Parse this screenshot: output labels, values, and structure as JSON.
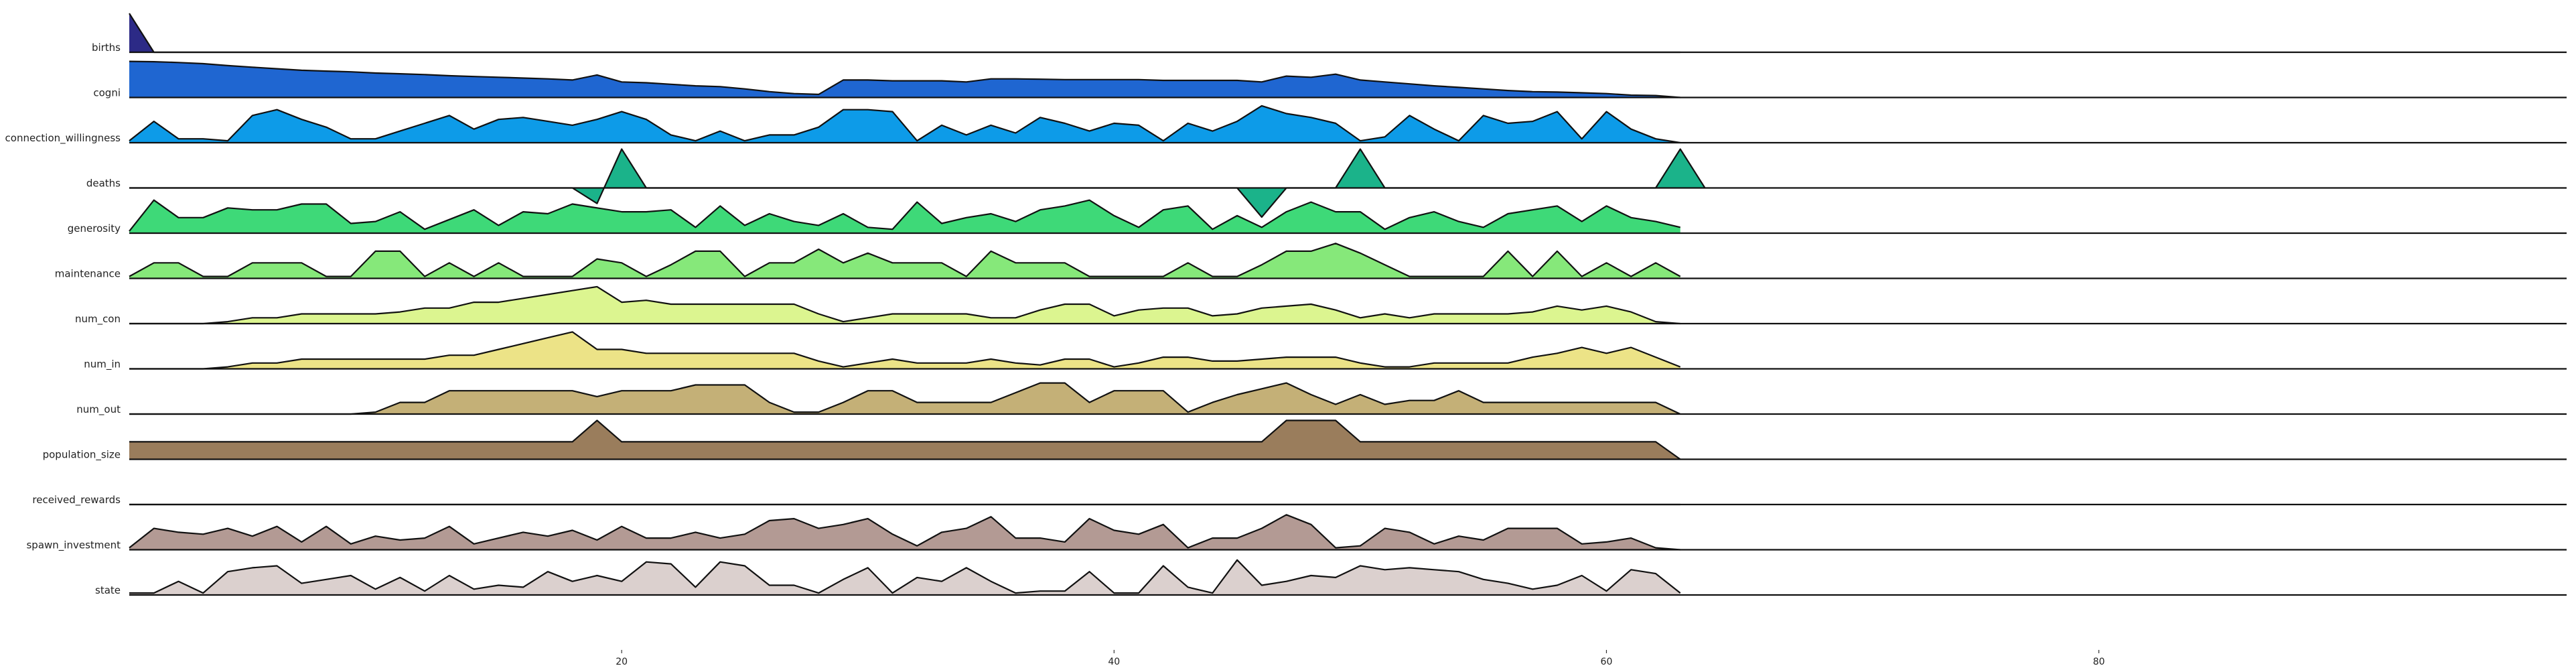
{
  "chart_data": {
    "type": "area",
    "layout": "ridgeline",
    "title": "",
    "xlabel": "",
    "ylabel": "",
    "xlim": [
      0,
      99
    ],
    "xticks": [
      20,
      40,
      60,
      80
    ],
    "grid": false,
    "legend": "none",
    "series": [
      {
        "name": "births",
        "color": "#2c2a86",
        "values": [
          1,
          0,
          0,
          0,
          0,
          0,
          0,
          0,
          0,
          0,
          0,
          0,
          0,
          0,
          0,
          0,
          0,
          0,
          0,
          0,
          0,
          0,
          0,
          0,
          0,
          0,
          0,
          0,
          0,
          0,
          0,
          0,
          0,
          0,
          0,
          0,
          0,
          0,
          0,
          0,
          0,
          0,
          0,
          0,
          0,
          0,
          0,
          0,
          0,
          0,
          0,
          0,
          0,
          0,
          0,
          0,
          0,
          0,
          0,
          0,
          0,
          0,
          0,
          0
        ]
      },
      {
        "name": "cogni",
        "color": "#1f66d1",
        "values": [
          0.93,
          0.92,
          0.9,
          0.87,
          0.82,
          0.78,
          0.74,
          0.7,
          0.68,
          0.66,
          0.63,
          0.61,
          0.59,
          0.56,
          0.54,
          0.52,
          0.5,
          0.48,
          0.45,
          0.58,
          0.4,
          0.38,
          0.34,
          0.3,
          0.28,
          0.22,
          0.15,
          0.1,
          0.08,
          0.45,
          0.45,
          0.43,
          0.43,
          0.43,
          0.4,
          0.48,
          0.48,
          0.47,
          0.46,
          0.46,
          0.46,
          0.46,
          0.44,
          0.44,
          0.44,
          0.44,
          0.4,
          0.55,
          0.52,
          0.6,
          0.45,
          0.4,
          0.35,
          0.3,
          0.26,
          0.22,
          0.18,
          0.15,
          0.14,
          0.12,
          0.1,
          0.06,
          0.05,
          0
        ]
      },
      {
        "name": "connection_willingness",
        "color": "#0d9be8",
        "values": [
          0.05,
          0.55,
          0.1,
          0.1,
          0.05,
          0.7,
          0.85,
          0.6,
          0.4,
          0.1,
          0.1,
          0.3,
          0.5,
          0.7,
          0.35,
          0.6,
          0.65,
          0.55,
          0.45,
          0.6,
          0.8,
          0.6,
          0.2,
          0.05,
          0.3,
          0.05,
          0.2,
          0.2,
          0.4,
          0.85,
          0.85,
          0.8,
          0.05,
          0.45,
          0.2,
          0.45,
          0.25,
          0.65,
          0.5,
          0.3,
          0.5,
          0.45,
          0.05,
          0.5,
          0.3,
          0.55,
          0.95,
          0.75,
          0.65,
          0.5,
          0.05,
          0.15,
          0.7,
          0.35,
          0.05,
          0.7,
          0.5,
          0.55,
          0.8,
          0.1,
          0.8,
          0.35,
          0.1,
          0
        ]
      },
      {
        "name": "deaths",
        "color": "#1bb38a",
        "values": [
          0,
          0,
          0,
          0,
          0,
          0,
          0,
          0,
          0,
          0,
          0,
          0,
          0,
          0,
          0,
          0,
          0,
          0,
          0,
          -0.4,
          1,
          0,
          0,
          0,
          0,
          0,
          0,
          0,
          0,
          0,
          0,
          0,
          0,
          0,
          0,
          0,
          0,
          0,
          0,
          0,
          0,
          0,
          0,
          0,
          0,
          0,
          -0.75,
          0,
          0,
          0,
          1,
          0,
          0,
          0,
          0,
          0,
          0,
          0,
          0,
          0,
          0,
          0,
          0,
          1,
          0
        ]
      },
      {
        "name": "generosity",
        "color": "#3ed978",
        "values": [
          0.05,
          0.85,
          0.4,
          0.4,
          0.65,
          0.6,
          0.6,
          0.75,
          0.75,
          0.25,
          0.3,
          0.55,
          0.1,
          0.35,
          0.6,
          0.2,
          0.55,
          0.5,
          0.75,
          0.65,
          0.55,
          0.55,
          0.6,
          0.15,
          0.7,
          0.2,
          0.5,
          0.3,
          0.2,
          0.5,
          0.15,
          0.1,
          0.8,
          0.25,
          0.4,
          0.5,
          0.3,
          0.6,
          0.7,
          0.85,
          0.45,
          0.15,
          0.6,
          0.7,
          0.1,
          0.45,
          0.15,
          0.55,
          0.8,
          0.55,
          0.55,
          0.1,
          0.4,
          0.55,
          0.3,
          0.15,
          0.5,
          0.6,
          0.7,
          0.3,
          0.7,
          0.4,
          0.3,
          0.15
        ]
      },
      {
        "name": "maintenance",
        "color": "#86e87a",
        "values": [
          0.05,
          0.4,
          0.4,
          0.05,
          0.05,
          0.4,
          0.4,
          0.4,
          0.05,
          0.05,
          0.7,
          0.7,
          0.05,
          0.4,
          0.05,
          0.4,
          0.05,
          0.05,
          0.05,
          0.5,
          0.4,
          0.05,
          0.35,
          0.7,
          0.7,
          0.05,
          0.4,
          0.4,
          0.75,
          0.4,
          0.65,
          0.4,
          0.4,
          0.4,
          0.05,
          0.7,
          0.4,
          0.4,
          0.4,
          0.05,
          0.05,
          0.05,
          0.05,
          0.4,
          0.05,
          0.05,
          0.35,
          0.7,
          0.7,
          0.9,
          0.65,
          0.35,
          0.05,
          0.05,
          0.05,
          0.05,
          0.7,
          0.05,
          0.7,
          0.05,
          0.4,
          0.05,
          0.4,
          0.05
        ]
      },
      {
        "name": "num_con",
        "color": "#dcf590",
        "values": [
          0,
          0,
          0,
          0,
          0.05,
          0.15,
          0.15,
          0.25,
          0.25,
          0.25,
          0.25,
          0.3,
          0.4,
          0.4,
          0.55,
          0.55,
          0.65,
          0.75,
          0.85,
          0.95,
          0.55,
          0.6,
          0.5,
          0.5,
          0.5,
          0.5,
          0.5,
          0.5,
          0.25,
          0.05,
          0.15,
          0.25,
          0.25,
          0.25,
          0.25,
          0.15,
          0.15,
          0.35,
          0.5,
          0.5,
          0.2,
          0.35,
          0.4,
          0.4,
          0.2,
          0.25,
          0.4,
          0.45,
          0.5,
          0.35,
          0.15,
          0.25,
          0.15,
          0.25,
          0.25,
          0.25,
          0.25,
          0.3,
          0.45,
          0.35,
          0.45,
          0.3,
          0.05,
          0
        ]
      },
      {
        "name": "num_in",
        "color": "#ece387",
        "values": [
          0,
          0,
          0,
          0,
          0.05,
          0.15,
          0.15,
          0.25,
          0.25,
          0.25,
          0.25,
          0.25,
          0.25,
          0.35,
          0.35,
          0.5,
          0.65,
          0.8,
          0.95,
          0.5,
          0.5,
          0.4,
          0.4,
          0.4,
          0.4,
          0.4,
          0.4,
          0.4,
          0.2,
          0.05,
          0.15,
          0.25,
          0.15,
          0.15,
          0.15,
          0.25,
          0.15,
          0.1,
          0.25,
          0.25,
          0.05,
          0.15,
          0.3,
          0.3,
          0.2,
          0.2,
          0.25,
          0.3,
          0.3,
          0.3,
          0.15,
          0.05,
          0.05,
          0.15,
          0.15,
          0.15,
          0.15,
          0.3,
          0.4,
          0.55,
          0.4,
          0.55,
          0.3,
          0.05
        ]
      },
      {
        "name": "num_out",
        "color": "#c4b077",
        "values": [
          0,
          0,
          0,
          0,
          0,
          0,
          0,
          0,
          0,
          0,
          0.05,
          0.3,
          0.3,
          0.6,
          0.6,
          0.6,
          0.6,
          0.6,
          0.6,
          0.45,
          0.6,
          0.6,
          0.6,
          0.75,
          0.75,
          0.75,
          0.3,
          0.05,
          0.05,
          0.3,
          0.6,
          0.6,
          0.3,
          0.3,
          0.3,
          0.3,
          0.55,
          0.8,
          0.8,
          0.3,
          0.6,
          0.6,
          0.6,
          0.05,
          0.3,
          0.5,
          0.65,
          0.8,
          0.5,
          0.25,
          0.5,
          0.25,
          0.35,
          0.35,
          0.6,
          0.3,
          0.3,
          0.3,
          0.3,
          0.3,
          0.3,
          0.3,
          0.3,
          0
        ]
      },
      {
        "name": "population_size",
        "color": "#9a7d5c",
        "values": [
          0.45,
          0.45,
          0.45,
          0.45,
          0.45,
          0.45,
          0.45,
          0.45,
          0.45,
          0.45,
          0.45,
          0.45,
          0.45,
          0.45,
          0.45,
          0.45,
          0.45,
          0.45,
          0.45,
          1,
          0.45,
          0.45,
          0.45,
          0.45,
          0.45,
          0.45,
          0.45,
          0.45,
          0.45,
          0.45,
          0.45,
          0.45,
          0.45,
          0.45,
          0.45,
          0.45,
          0.45,
          0.45,
          0.45,
          0.45,
          0.45,
          0.45,
          0.45,
          0.45,
          0.45,
          0.45,
          0.45,
          1,
          1,
          1,
          0.45,
          0.45,
          0.45,
          0.45,
          0.45,
          0.45,
          0.45,
          0.45,
          0.45,
          0.45,
          0.45,
          0.45,
          0.45,
          0
        ]
      },
      {
        "name": "received_rewards",
        "color": "#b39a94",
        "values": [
          0,
          0,
          0,
          0,
          0,
          0,
          0,
          0,
          0,
          0,
          0,
          0,
          0,
          0,
          0,
          0,
          0,
          0,
          0,
          0,
          0,
          0,
          0,
          0,
          0,
          0,
          0,
          0,
          0,
          0,
          0,
          0,
          0,
          0,
          0,
          0,
          0,
          0,
          0,
          0,
          0,
          0,
          0,
          0,
          0,
          0,
          0,
          0,
          0,
          0,
          0,
          0,
          0,
          0,
          0,
          0,
          0,
          0,
          0,
          0,
          0,
          0,
          0,
          0
        ]
      },
      {
        "name": "spawn_investment",
        "color": "#b39a94",
        "values": [
          0.05,
          0.55,
          0.45,
          0.4,
          0.55,
          0.35,
          0.6,
          0.2,
          0.6,
          0.15,
          0.35,
          0.25,
          0.3,
          0.6,
          0.15,
          0.3,
          0.45,
          0.35,
          0.5,
          0.25,
          0.6,
          0.3,
          0.3,
          0.45,
          0.3,
          0.4,
          0.75,
          0.8,
          0.55,
          0.65,
          0.8,
          0.4,
          0.1,
          0.45,
          0.55,
          0.85,
          0.3,
          0.3,
          0.2,
          0.8,
          0.5,
          0.4,
          0.65,
          0.05,
          0.3,
          0.3,
          0.55,
          0.9,
          0.65,
          0.05,
          0.1,
          0.55,
          0.45,
          0.15,
          0.35,
          0.25,
          0.55,
          0.55,
          0.55,
          0.15,
          0.2,
          0.3,
          0.05,
          0
        ]
      },
      {
        "name": "state",
        "color": "#dbd0ce",
        "values": [
          0.05,
          0.05,
          0.35,
          0.05,
          0.6,
          0.7,
          0.75,
          0.3,
          0.4,
          0.5,
          0.15,
          0.45,
          0.1,
          0.5,
          0.15,
          0.25,
          0.2,
          0.6,
          0.35,
          0.5,
          0.35,
          0.85,
          0.8,
          0.2,
          0.85,
          0.75,
          0.25,
          0.25,
          0.05,
          0.4,
          0.7,
          0.05,
          0.45,
          0.35,
          0.7,
          0.35,
          0.05,
          0.1,
          0.1,
          0.6,
          0.05,
          0.05,
          0.75,
          0.2,
          0.05,
          0.9,
          0.25,
          0.35,
          0.5,
          0.45,
          0.75,
          0.65,
          0.7,
          0.65,
          0.6,
          0.4,
          0.3,
          0.15,
          0.25,
          0.5,
          0.1,
          0.65,
          0.55,
          0.05
        ]
      }
    ]
  }
}
